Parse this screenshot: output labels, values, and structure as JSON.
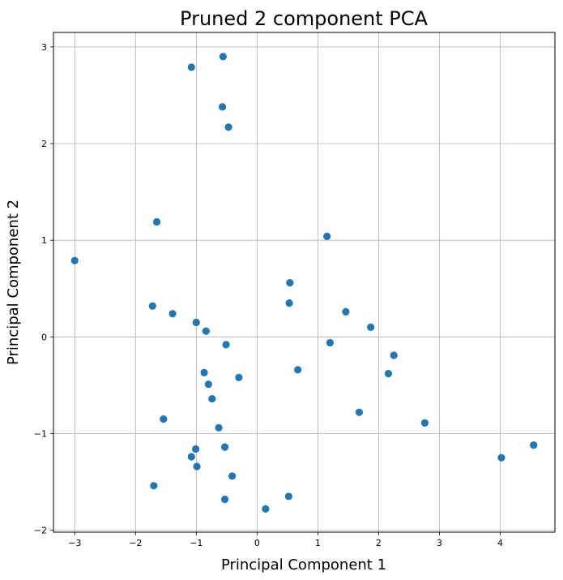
{
  "chart_data": {
    "type": "scatter",
    "title": "Pruned 2 component PCA",
    "xlabel": "Principal Component 1",
    "ylabel": "Principal Component 2",
    "xlim": [
      -3.35,
      4.9
    ],
    "ylim": [
      -2.02,
      3.15
    ],
    "xticks": [
      -3,
      -2,
      -1,
      0,
      1,
      2,
      3,
      4
    ],
    "yticks": [
      -2,
      -1,
      0,
      1,
      2,
      3
    ],
    "grid": true,
    "marker_color": "#1f77b4",
    "points": [
      {
        "x": -1.08,
        "y": 2.79
      },
      {
        "x": -0.56,
        "y": 2.9
      },
      {
        "x": -0.57,
        "y": 2.38
      },
      {
        "x": -0.47,
        "y": 2.17
      },
      {
        "x": -1.65,
        "y": 1.19
      },
      {
        "x": 1.15,
        "y": 1.04
      },
      {
        "x": -3.0,
        "y": 0.79
      },
      {
        "x": 0.54,
        "y": 0.56
      },
      {
        "x": 0.53,
        "y": 0.35
      },
      {
        "x": -1.72,
        "y": 0.32
      },
      {
        "x": -1.39,
        "y": 0.24
      },
      {
        "x": 1.46,
        "y": 0.26
      },
      {
        "x": -1.0,
        "y": 0.15
      },
      {
        "x": 1.87,
        "y": 0.1
      },
      {
        "x": -0.84,
        "y": 0.06
      },
      {
        "x": -0.51,
        "y": -0.08
      },
      {
        "x": 1.2,
        "y": -0.06
      },
      {
        "x": 2.25,
        "y": -0.19
      },
      {
        "x": 0.67,
        "y": -0.34
      },
      {
        "x": -0.87,
        "y": -0.37
      },
      {
        "x": 2.16,
        "y": -0.38
      },
      {
        "x": -0.3,
        "y": -0.42
      },
      {
        "x": -0.8,
        "y": -0.49
      },
      {
        "x": -0.74,
        "y": -0.64
      },
      {
        "x": 1.68,
        "y": -0.78
      },
      {
        "x": -1.54,
        "y": -0.85
      },
      {
        "x": 2.76,
        "y": -0.89
      },
      {
        "x": -0.63,
        "y": -0.94
      },
      {
        "x": -1.01,
        "y": -1.16
      },
      {
        "x": -0.53,
        "y": -1.14
      },
      {
        "x": 4.55,
        "y": -1.12
      },
      {
        "x": -1.08,
        "y": -1.24
      },
      {
        "x": 4.02,
        "y": -1.25
      },
      {
        "x": -0.99,
        "y": -1.34
      },
      {
        "x": -0.41,
        "y": -1.44
      },
      {
        "x": -1.7,
        "y": -1.54
      },
      {
        "x": 0.52,
        "y": -1.65
      },
      {
        "x": -0.53,
        "y": -1.68
      },
      {
        "x": 0.14,
        "y": -1.78
      }
    ]
  }
}
